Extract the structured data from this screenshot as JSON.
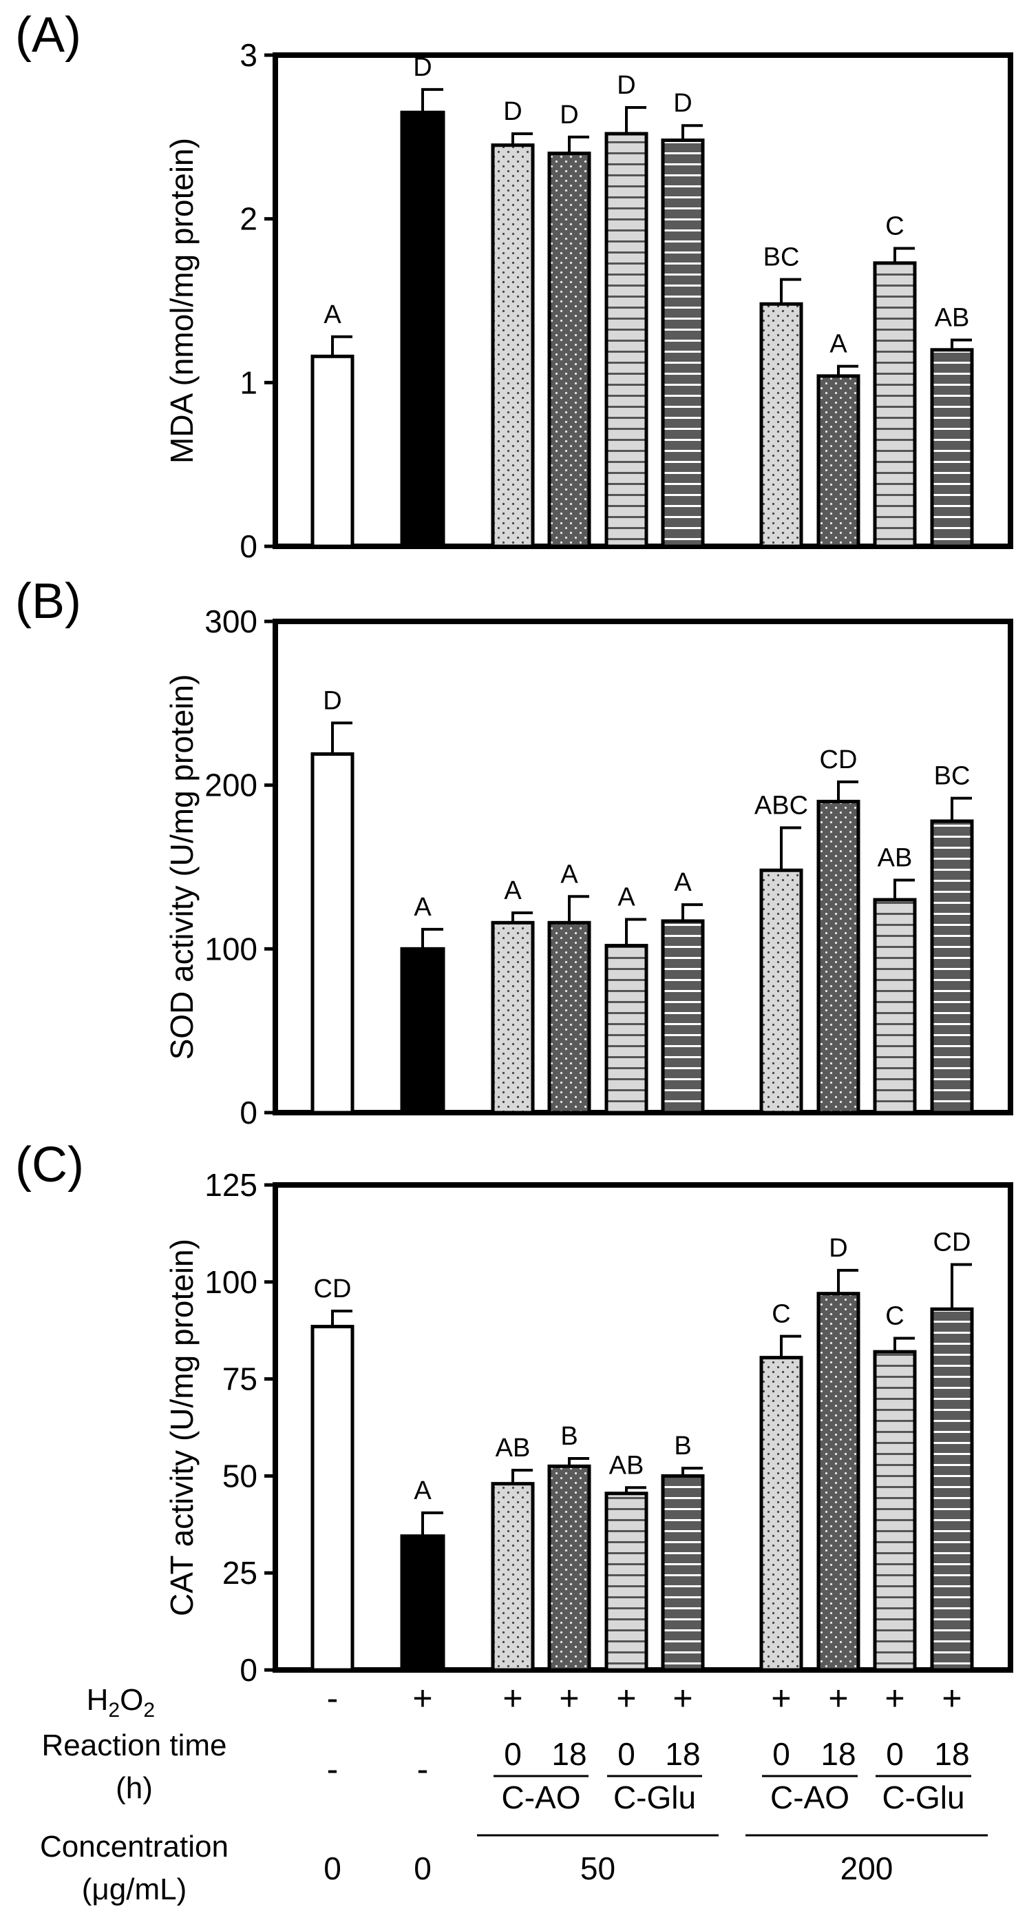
{
  "chart_data": [
    {
      "panel_label": "(A)",
      "type": "bar",
      "ylabel": "MDA (nmol/mg protein)",
      "ylim": [
        0,
        3
      ],
      "yticks": [
        "0",
        "1",
        "2",
        "3"
      ],
      "values": [
        1.16,
        2.65,
        2.45,
        2.4,
        2.52,
        2.48,
        1.48,
        1.04,
        1.73,
        1.2
      ],
      "errors": [
        0.12,
        0.14,
        0.07,
        0.1,
        0.16,
        0.09,
        0.15,
        0.06,
        0.09,
        0.06
      ],
      "letters": [
        "A",
        "D",
        "D",
        "D",
        "D",
        "D",
        "BC",
        "A",
        "C",
        "AB"
      ]
    },
    {
      "panel_label": "(B)",
      "type": "bar",
      "ylabel": "SOD activity (U/mg protein)",
      "ylim": [
        0,
        300
      ],
      "yticks": [
        "0",
        "100",
        "200",
        "300"
      ],
      "values": [
        219,
        100,
        116,
        116,
        102,
        117,
        148,
        190,
        130,
        178
      ],
      "errors": [
        19,
        12,
        6,
        16,
        16,
        10,
        26,
        12,
        12,
        14
      ],
      "letters": [
        "D",
        "A",
        "A",
        "A",
        "A",
        "A",
        "ABC",
        "CD",
        "AB",
        "BC"
      ]
    },
    {
      "panel_label": "(C)",
      "type": "bar",
      "ylabel": "CAT activity (U/mg protein)",
      "ylim": [
        0,
        125
      ],
      "yticks": [
        "0",
        "25",
        "50",
        "75",
        "100",
        "125"
      ],
      "values": [
        88.5,
        34.5,
        48,
        52.5,
        45.5,
        50,
        80.5,
        97,
        82,
        93
      ],
      "errors": [
        4,
        6,
        3.5,
        2,
        1.5,
        2,
        5.5,
        6,
        3.5,
        11.5
      ],
      "letters": [
        "CD",
        "A",
        "AB",
        "B",
        "AB",
        "B",
        "C",
        "D",
        "C",
        "CD"
      ]
    }
  ],
  "bar_styles": [
    "white",
    "black",
    "light-dots",
    "dark-dots",
    "light-stripes",
    "dark-stripes",
    "light-dots",
    "dark-dots",
    "light-stripes",
    "dark-stripes"
  ],
  "colors": {
    "light_fill": "#d8d8d8",
    "dark_fill": "#5a5a5a",
    "black": "#000000",
    "white": "#ffffff"
  },
  "table": {
    "h2o2_label_main": "H",
    "h2o2_label_sub": "2",
    "h2o2_label_end": "O",
    "h2o2_label_sub2": "2",
    "h2o2_values": [
      "-",
      "+",
      "+",
      "+",
      "+",
      "+",
      "+",
      "+",
      "+",
      "+"
    ],
    "reaction_label_line1": "Reaction time",
    "reaction_label_line2": "(h)",
    "reaction_controls": [
      "-",
      "-"
    ],
    "reaction_times": [
      "0",
      "18",
      "0",
      "18",
      "0",
      "18",
      "0",
      "18"
    ],
    "sample_groups": [
      "C-AO",
      "C-Glu",
      "C-AO",
      "C-Glu"
    ],
    "concentration_label_line1": "Concentration",
    "concentration_label_line2": "(μg/mL)",
    "concentration_controls": [
      "0",
      "0"
    ],
    "concentration_groups": [
      "50",
      "200"
    ]
  }
}
